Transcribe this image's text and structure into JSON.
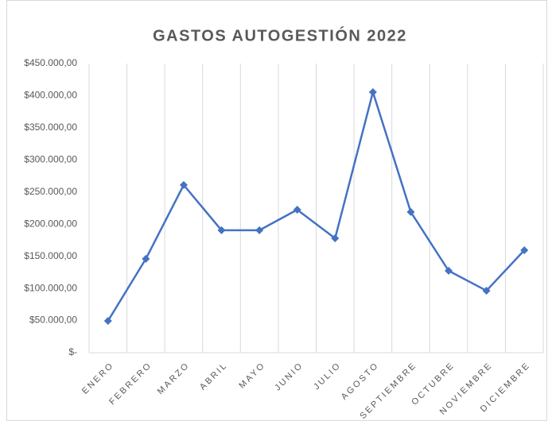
{
  "chart_data": {
    "type": "line",
    "title": "GASTOS AUTOGESTIÓN 2022",
    "categories": [
      "ENERO",
      "FEBRERO",
      "MARZO",
      "ABRIL",
      "MAYO",
      "JUNIO",
      "JULIO",
      "AGOSTO",
      "SEPTIEMBRE",
      "OCTUBRE",
      "NOVIEMBRE",
      "DICIEMBRE"
    ],
    "series": [
      {
        "name": "Gastos",
        "color": "#4472c4",
        "values": [
          49500,
          146000,
          261000,
          190500,
          190500,
          222500,
          178000,
          405500,
          219000,
          127500,
          96500,
          159500
        ]
      }
    ],
    "ylim": [
      0,
      450000
    ],
    "yticks": [
      {
        "value": 0,
        "label": "$-"
      },
      {
        "value": 50000,
        "label": "$50.000,00"
      },
      {
        "value": 100000,
        "label": "$100.000,00"
      },
      {
        "value": 150000,
        "label": "$150.000,00"
      },
      {
        "value": 200000,
        "label": "$200.000,00"
      },
      {
        "value": 250000,
        "label": "$250.000,00"
      },
      {
        "value": 300000,
        "label": "$300.000,00"
      },
      {
        "value": 350000,
        "label": "$350.000,00"
      },
      {
        "value": 400000,
        "label": "$400.000,00"
      },
      {
        "value": 450000,
        "label": "$450.000,00"
      }
    ],
    "grid": true
  }
}
